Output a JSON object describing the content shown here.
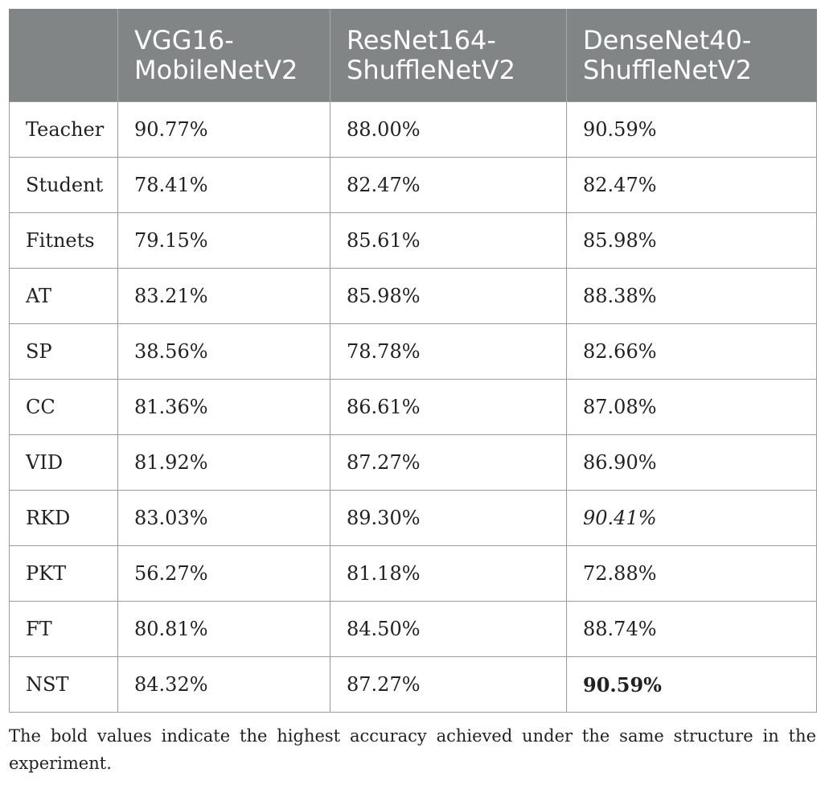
{
  "table": {
    "headers": [
      "",
      "VGG16-\nMobileNetV2",
      "ResNet164-\nShuffleNetV2",
      "DenseNet40-\nShuffleNetV2"
    ],
    "header_lines": [
      [
        "",
        ""
      ],
      [
        "VGG16-",
        "MobileNetV2"
      ],
      [
        "ResNet164-",
        "ShuffleNetV2"
      ],
      [
        "DenseNet40-",
        "ShuffleNetV2"
      ]
    ],
    "rows": [
      {
        "method": "Teacher",
        "c1": "90.77%",
        "c2": "88.00%",
        "c3": "90.59%"
      },
      {
        "method": "Student",
        "c1": "78.41%",
        "c2": "82.47%",
        "c3": "82.47%"
      },
      {
        "method": "Fitnets",
        "c1": "79.15%",
        "c2": "85.61%",
        "c3": "85.98%"
      },
      {
        "method": "AT",
        "c1": "83.21%",
        "c2": "85.98%",
        "c3": "88.38%"
      },
      {
        "method": "SP",
        "c1": "38.56%",
        "c2": "78.78%",
        "c3": "82.66%"
      },
      {
        "method": "CC",
        "c1": "81.36%",
        "c2": "86.61%",
        "c3": "87.08%"
      },
      {
        "method": "VID",
        "c1": "81.92%",
        "c2": "87.27%",
        "c3": "86.90%"
      },
      {
        "method": "RKD",
        "c1": "83.03%",
        "c2": "89.30%",
        "c3": "90.41%"
      },
      {
        "method": "PKT",
        "c1": "56.27%",
        "c2": "81.18%",
        "c3": "72.88%"
      },
      {
        "method": "FT",
        "c1": "80.81%",
        "c2": "84.50%",
        "c3": "88.74%"
      },
      {
        "method": "NST",
        "c1": "84.32%",
        "c2": "87.27%",
        "c3": "90.59%"
      }
    ]
  },
  "footnote": "The bold values indicate the highest accuracy achieved under the same structure in the experiment.",
  "colors": {
    "header_bg": "#818585",
    "header_text": "#ffffff",
    "border": "#9a9a9a"
  }
}
